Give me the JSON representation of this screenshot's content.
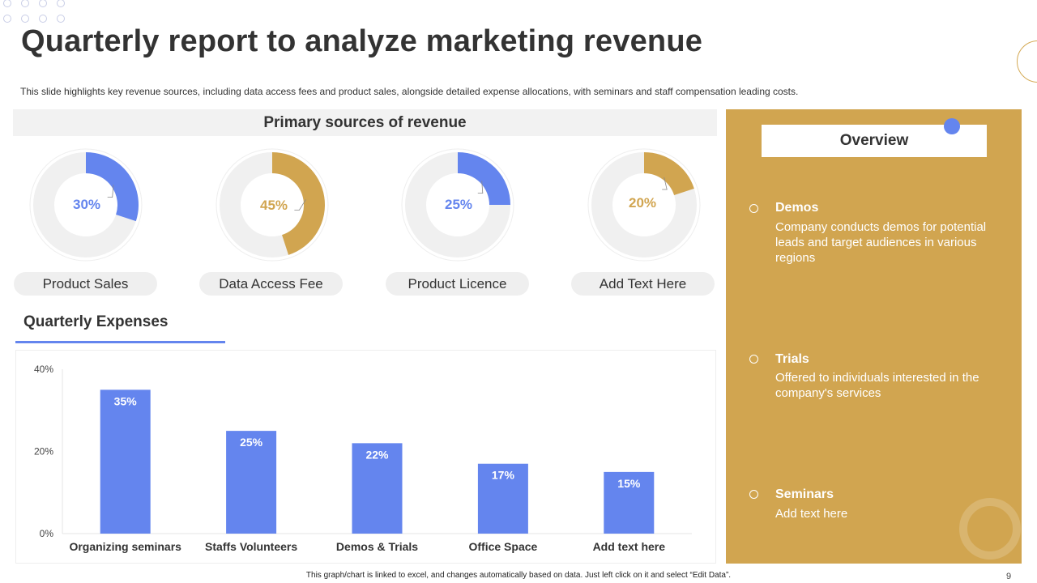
{
  "header": {
    "title": "Quarterly report to analyze marketing revenue",
    "subtitle": "This slide highlights key revenue sources, including data access fees and product sales, alongside detailed expense allocations, with seminars and staff compensation leading costs."
  },
  "revenue": {
    "heading": "Primary sources of revenue",
    "items": [
      {
        "label": "Product Sales",
        "percent_text": "30%",
        "value": 30,
        "color": "#6485ee"
      },
      {
        "label": "Data Access Fee",
        "percent_text": "45%",
        "value": 45,
        "color": "#d1a550"
      },
      {
        "label": "Product Licence",
        "percent_text": "25%",
        "value": 25,
        "color": "#6485ee"
      },
      {
        "label": "Add Text Here",
        "percent_text": "20%",
        "value": 20,
        "color": "#d1a550"
      }
    ]
  },
  "expenses": {
    "heading": "Quarterly Expenses"
  },
  "chart_data": {
    "type": "bar",
    "title": "Quarterly Expenses",
    "categories": [
      "Organizing seminars",
      "Staffs Volunteers",
      "Demos & Trials",
      "Office Space",
      "Add text here"
    ],
    "values": [
      35,
      25,
      22,
      17,
      15
    ],
    "value_labels": [
      "35%",
      "25%",
      "22%",
      "17%",
      "15%"
    ],
    "yticks": [
      "0%",
      "20%",
      "40%"
    ],
    "ytick_values": [
      0,
      20,
      40
    ],
    "ylim": [
      0,
      40
    ],
    "xlabel": "",
    "ylabel": "",
    "bar_color": "#6485ee"
  },
  "overview": {
    "heading": "Overview",
    "items": [
      {
        "title": "Demos",
        "desc": "Company conducts demos for potential leads and target audiences in various regions"
      },
      {
        "title": "Trials",
        "desc": "Offered to individuals interested in the company's services"
      },
      {
        "title": "Seminars",
        "desc": "Add text here"
      }
    ]
  },
  "footer": {
    "note": "This graph/chart is linked to excel, and changes automatically based on data. Just left click on it and select “Edit Data”.",
    "page_number": "9"
  },
  "colors": {
    "accent_blue": "#6485ee",
    "accent_gold": "#d1a550",
    "track": "#f0f0f0"
  }
}
